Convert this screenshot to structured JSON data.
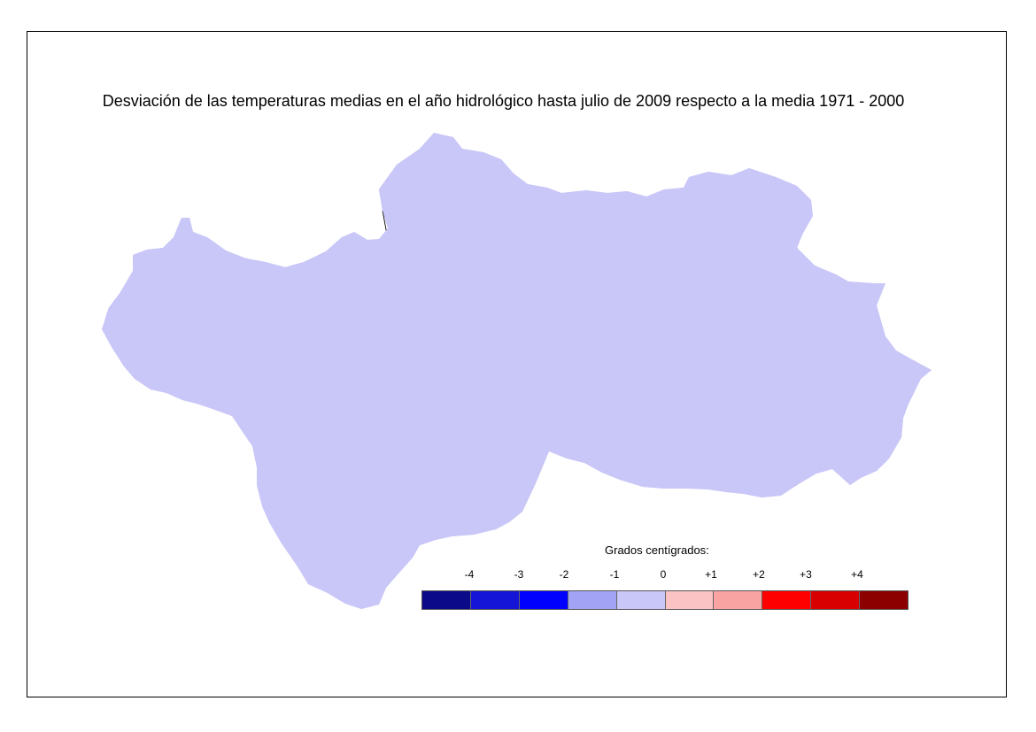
{
  "title": "Desviación de las temperaturas medias en el año hidrológico hasta julio de 2009 respecto a la media 1971 - 2000",
  "legend": {
    "title": "Grados centígrados:",
    "ticks": [
      "-4",
      "-3",
      "-2",
      "-1",
      "0",
      "+1",
      "+2",
      "+3",
      "+4"
    ],
    "colors": [
      "#0b0b8a",
      "#1515d8",
      "#0000ff",
      "#a3a3f5",
      "#c9c7f7",
      "#fbc3c3",
      "#f9a3a3",
      "#ff0000",
      "#d80000",
      "#8c0000"
    ]
  },
  "map": {
    "base_color": "#c9c7f7",
    "cool_color": "#a3a3f5",
    "warm_color": "#fbc3c3",
    "warm2_color": "#f9a3a3",
    "strong_cool_color": "#0000ff",
    "strong_warm_color": "#ff0000",
    "border_color": "#000000"
  }
}
